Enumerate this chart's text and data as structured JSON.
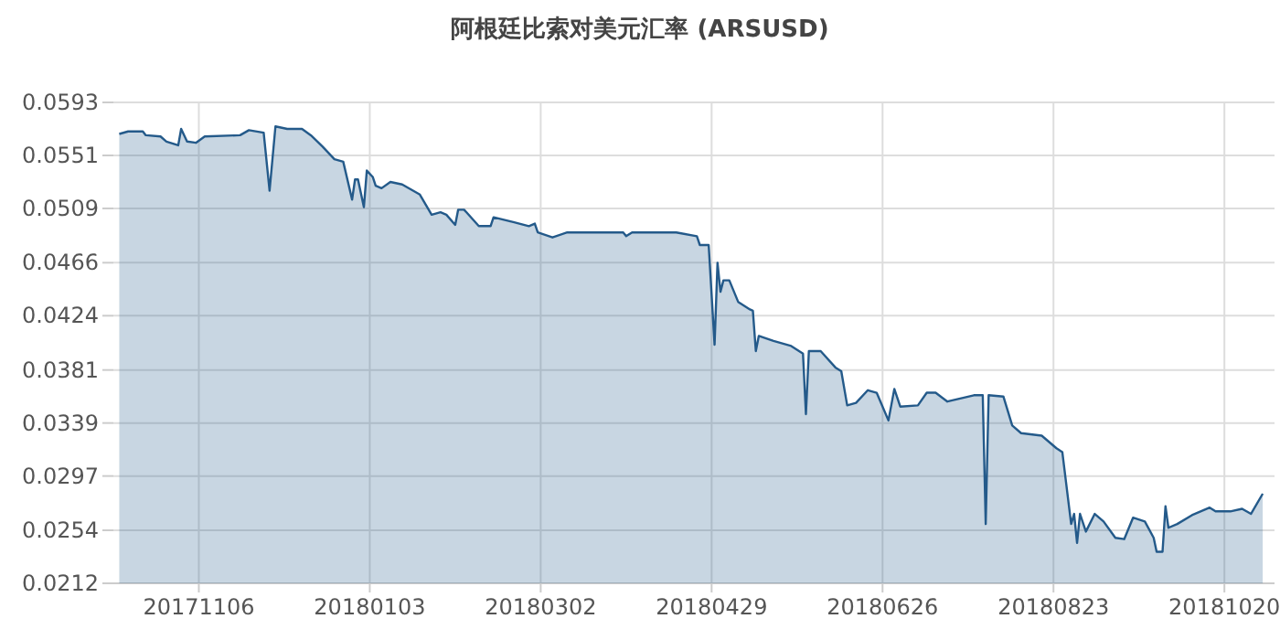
{
  "chart_data": {
    "type": "area",
    "title": "阿根廷比索对美元汇率 (ARSUSD)",
    "x": [
      "2017-10-10",
      "2017-10-13",
      "2017-10-18",
      "2017-10-19",
      "2017-10-24",
      "2017-10-26",
      "2017-10-30",
      "2017-10-31",
      "2017-11-02",
      "2017-11-05",
      "2017-11-08",
      "2017-11-20",
      "2017-11-23",
      "2017-11-28",
      "2017-11-30",
      "2017-12-02",
      "2017-12-06",
      "2017-12-11",
      "2017-12-14",
      "2017-12-18",
      "2017-12-22",
      "2017-12-25",
      "2017-12-28",
      "2017-12-29",
      "2017-12-30",
      "2018-01-01",
      "2018-01-02",
      "2018-01-04",
      "2018-01-05",
      "2018-01-07",
      "2018-01-10",
      "2018-01-14",
      "2018-01-20",
      "2018-01-24",
      "2018-01-27",
      "2018-01-29",
      "2018-02-01",
      "2018-02-02",
      "2018-02-04",
      "2018-02-09",
      "2018-02-13",
      "2018-02-14",
      "2018-02-21",
      "2018-02-26",
      "2018-02-28",
      "2018-03-01",
      "2018-03-06",
      "2018-03-11",
      "2018-03-22",
      "2018-03-30",
      "2018-03-31",
      "2018-04-02",
      "2018-04-17",
      "2018-04-24",
      "2018-04-25",
      "2018-04-28",
      "2018-04-30",
      "2018-05-01",
      "2018-05-02",
      "2018-05-03",
      "2018-05-05",
      "2018-05-08",
      "2018-05-12",
      "2018-05-13",
      "2018-05-14",
      "2018-05-15",
      "2018-05-20",
      "2018-05-26",
      "2018-05-30",
      "2018-05-31",
      "2018-06-01",
      "2018-06-05",
      "2018-06-10",
      "2018-06-12",
      "2018-06-14",
      "2018-06-17",
      "2018-06-21",
      "2018-06-24",
      "2018-06-28",
      "2018-06-30",
      "2018-07-02",
      "2018-07-08",
      "2018-07-11",
      "2018-07-14",
      "2018-07-18",
      "2018-07-27",
      "2018-07-30",
      "2018-07-31",
      "2018-08-01",
      "2018-08-06",
      "2018-08-09",
      "2018-08-12",
      "2018-08-19",
      "2018-08-24",
      "2018-08-26",
      "2018-08-29",
      "2018-08-30",
      "2018-08-31",
      "2018-09-01",
      "2018-09-03",
      "2018-09-06",
      "2018-09-09",
      "2018-09-13",
      "2018-09-16",
      "2018-09-19",
      "2018-09-23",
      "2018-09-26",
      "2018-09-27",
      "2018-09-29",
      "2018-09-30",
      "2018-10-01",
      "2018-10-04",
      "2018-10-09",
      "2018-10-15",
      "2018-10-17",
      "2018-10-22",
      "2018-10-26",
      "2018-10-29",
      "2018-11-02"
    ],
    "series": [
      {
        "color": "#245a8a",
        "values": [
          0.0568,
          0.057,
          0.057,
          0.0567,
          0.0566,
          0.0562,
          0.0559,
          0.0572,
          0.0562,
          0.0561,
          0.0566,
          0.0567,
          0.0571,
          0.0569,
          0.0523,
          0.0574,
          0.0572,
          0.0572,
          0.0567,
          0.0558,
          0.0548,
          0.0546,
          0.0516,
          0.0532,
          0.0532,
          0.051,
          0.0539,
          0.0534,
          0.0527,
          0.0525,
          0.053,
          0.0528,
          0.052,
          0.0504,
          0.0506,
          0.0504,
          0.0496,
          0.0508,
          0.0508,
          0.0495,
          0.0495,
          0.0502,
          0.0498,
          0.0495,
          0.0497,
          0.049,
          0.0486,
          0.049,
          0.049,
          0.049,
          0.0487,
          0.049,
          0.049,
          0.0487,
          0.048,
          0.048,
          0.0401,
          0.0466,
          0.0443,
          0.0452,
          0.0452,
          0.0435,
          0.0429,
          0.0428,
          0.0396,
          0.0408,
          0.0404,
          0.04,
          0.0394,
          0.0346,
          0.0396,
          0.0396,
          0.0383,
          0.038,
          0.0353,
          0.0355,
          0.0365,
          0.0363,
          0.0341,
          0.0366,
          0.0352,
          0.0353,
          0.0363,
          0.0363,
          0.0356,
          0.0361,
          0.0361,
          0.0259,
          0.0361,
          0.036,
          0.0337,
          0.0331,
          0.0329,
          0.0319,
          0.0316,
          0.0259,
          0.0267,
          0.0244,
          0.0267,
          0.0253,
          0.0267,
          0.0261,
          0.0248,
          0.0247,
          0.0264,
          0.0261,
          0.0248,
          0.0237,
          0.0237,
          0.0273,
          0.0256,
          0.0259,
          0.0266,
          0.0272,
          0.0269,
          0.0269,
          0.0271,
          0.0267,
          0.0283
        ]
      }
    ],
    "xlim": [
      "2017-10-08",
      "2018-11-06"
    ],
    "xticks": [
      {
        "value": "2017-11-06",
        "label": "20171106"
      },
      {
        "value": "2018-01-03",
        "label": "20180103"
      },
      {
        "value": "2018-03-02",
        "label": "20180302"
      },
      {
        "value": "2018-04-29",
        "label": "20180429"
      },
      {
        "value": "2018-06-26",
        "label": "20180626"
      },
      {
        "value": "2018-08-23",
        "label": "20180823"
      },
      {
        "value": "2018-10-20",
        "label": "20181020"
      }
    ],
    "ylim": [
      0.0212,
      0.0593
    ],
    "yticks": [
      0.0212,
      0.0254,
      0.0297,
      0.0339,
      0.0381,
      0.0424,
      0.0466,
      0.0509,
      0.0551,
      0.0593
    ],
    "grid": true
  }
}
